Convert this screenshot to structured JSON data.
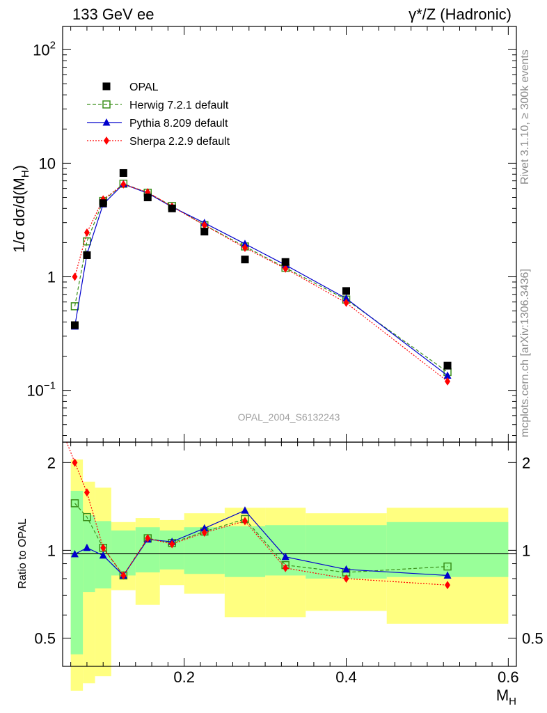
{
  "header": {
    "left": "133 GeV ee",
    "right": "γ*/Z (Hadronic)"
  },
  "side_labels": {
    "rivet": "Rivet 3.1.10, ≥ 300k events",
    "mcplots": "mcplots.cern.ch [arXiv:1306.3436]"
  },
  "colors": {
    "opal": "#000000",
    "herwig": "#3a8f1a",
    "pythia": "#0000cc",
    "sherpa": "#ff0000",
    "band_inner": "#99ff99",
    "band_outer": "#ffff80"
  },
  "chart_data": [
    {
      "type": "scatter",
      "title": "",
      "ylabel": "1/σ dσ/d(M_H)",
      "ylabel_main": "1/σ dσ/d(M",
      "ylabel_sub": "H",
      "ylabel_close": ")",
      "ylim": [
        0.035,
        160
      ],
      "yscale": "log",
      "xlim": [
        0.05,
        0.61
      ],
      "watermark": "OPAL_2004_S6132243",
      "yticks": [
        {
          "value": 0.1,
          "base": "10",
          "exp": "−1"
        },
        {
          "value": 1,
          "base": "1",
          "exp": ""
        },
        {
          "value": 10,
          "base": "10",
          "exp": ""
        },
        {
          "value": 100,
          "base": "10",
          "exp": "2"
        }
      ],
      "legend_position": "top-left",
      "series": [
        {
          "name": "OPAL",
          "marker": "square-filled",
          "x": [
            0.065,
            0.08,
            0.1,
            0.125,
            0.155,
            0.185,
            0.225,
            0.275,
            0.325,
            0.4,
            0.525
          ],
          "y": [
            0.375,
            1.55,
            4.45,
            8.2,
            5.0,
            4.0,
            2.5,
            1.42,
            1.35,
            0.75,
            0.165
          ]
        },
        {
          "name": "Herwig 7.2.1 default",
          "marker": "square-open",
          "line": "dashed",
          "x": [
            0.065,
            0.08,
            0.1,
            0.125,
            0.155,
            0.185,
            0.225,
            0.275,
            0.325,
            0.4,
            0.525
          ],
          "y": [
            0.55,
            2.05,
            4.65,
            6.6,
            5.5,
            4.2,
            2.85,
            1.85,
            1.2,
            0.63,
            0.145
          ]
        },
        {
          "name": "Pythia 8.209 default",
          "marker": "triangle",
          "line": "solid",
          "x": [
            0.065,
            0.08,
            0.1,
            0.125,
            0.155,
            0.185,
            0.225,
            0.275,
            0.325,
            0.4,
            0.525
          ],
          "y": [
            0.365,
            1.58,
            4.35,
            6.55,
            5.45,
            4.12,
            2.98,
            1.95,
            1.27,
            0.645,
            0.135
          ]
        },
        {
          "name": "Sherpa 2.2.9 default",
          "marker": "diamond",
          "line": "dotted",
          "x": [
            0.065,
            0.08,
            0.1,
            0.125,
            0.155,
            0.185,
            0.225,
            0.275,
            0.325,
            0.4,
            0.525
          ],
          "y": [
            1.0,
            2.45,
            4.8,
            6.5,
            5.55,
            4.15,
            2.85,
            1.8,
            1.18,
            0.59,
            0.12
          ]
        }
      ]
    },
    {
      "type": "line",
      "ylabel": "Ratio to OPAL",
      "xlabel": "M_H",
      "xlabel_main": "M",
      "xlabel_sub": "H",
      "xlim": [
        0.05,
        0.61
      ],
      "ylim": [
        0.4,
        2.35
      ],
      "yscale": "log",
      "xticks": [
        0.2,
        0.4,
        0.6
      ],
      "xtick_labels": [
        "0.2",
        "0.4",
        "0.6"
      ],
      "yticks": [
        0.5,
        1,
        2
      ],
      "ytick_labels": [
        "0.5",
        "1",
        "2"
      ],
      "bands": {
        "edges": [
          0.06,
          0.075,
          0.09,
          0.11,
          0.14,
          0.17,
          0.2,
          0.25,
          0.3,
          0.35,
          0.45,
          0.6
        ],
        "inner_lo": [
          0.44,
          0.72,
          0.74,
          0.82,
          0.84,
          0.86,
          0.83,
          0.81,
          0.82,
          0.8,
          0.81
        ],
        "inner_hi": [
          1.6,
          1.32,
          1.26,
          1.17,
          1.2,
          1.17,
          1.2,
          1.21,
          1.22,
          1.22,
          1.25
        ],
        "outer_lo": [
          0.33,
          0.35,
          0.37,
          0.73,
          0.65,
          0.76,
          0.71,
          0.59,
          0.59,
          0.62,
          0.56
        ],
        "outer_hi": [
          2.05,
          1.72,
          1.64,
          1.25,
          1.29,
          1.27,
          1.34,
          1.4,
          1.4,
          1.34,
          1.4
        ]
      },
      "series": [
        {
          "name": "Herwig 7.2.1 default",
          "x": [
            0.065,
            0.08,
            0.1,
            0.125,
            0.155,
            0.185,
            0.225,
            0.275,
            0.325,
            0.4,
            0.525
          ],
          "y": [
            1.45,
            1.3,
            1.02,
            0.82,
            1.1,
            1.06,
            1.16,
            1.28,
            0.89,
            0.84,
            0.88
          ]
        },
        {
          "name": "Pythia 8.209 default",
          "x": [
            0.065,
            0.08,
            0.1,
            0.125,
            0.155,
            0.185,
            0.225,
            0.275,
            0.325,
            0.4,
            0.525
          ],
          "y": [
            0.97,
            1.02,
            0.96,
            0.82,
            1.09,
            1.07,
            1.19,
            1.37,
            0.95,
            0.86,
            0.82
          ]
        },
        {
          "name": "Sherpa 2.2.9 default",
          "x": [
            0.055,
            0.065,
            0.08,
            0.1,
            0.125,
            0.155,
            0.185,
            0.225,
            0.275,
            0.325,
            0.4,
            0.525
          ],
          "y": [
            2.35,
            2.0,
            1.58,
            1.02,
            0.82,
            1.1,
            1.05,
            1.15,
            1.26,
            0.87,
            0.8,
            0.76
          ]
        }
      ]
    }
  ]
}
